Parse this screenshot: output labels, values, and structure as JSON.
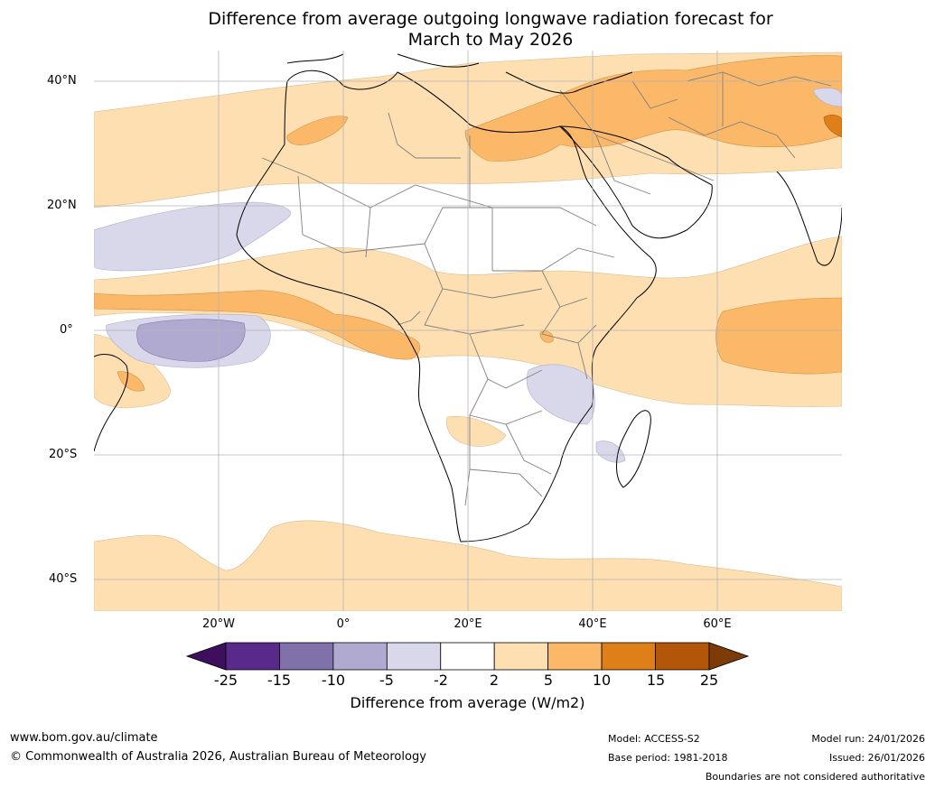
{
  "title_line1": "Difference from average outgoing longwave radiation forecast for",
  "title_line2": "March to May 2026",
  "lat_labels": [
    "40°N",
    "20°N",
    "0°",
    "20°S",
    "40°S"
  ],
  "lon_labels": [
    "20°W",
    "0°",
    "20°E",
    "40°E",
    "60°E"
  ],
  "colorbar": {
    "ticks": [
      "-25",
      "-15",
      "-10",
      "-5",
      "-2",
      "2",
      "5",
      "10",
      "15",
      "25"
    ],
    "colors": [
      "#3f0f5f",
      "#5a2a8a",
      "#8071aa",
      "#b0aad0",
      "#d8d8ea",
      "#ffffff",
      "#fddfb2",
      "#fbb868",
      "#df7f18",
      "#b3560a",
      "#7d3b08"
    ],
    "label": "Difference from average (W/m2)"
  },
  "footer": {
    "url": "www.bom.gov.au/climate",
    "copyright": "© Commonwealth of Australia 2026, Australian Bureau of Meteorology",
    "model": "Model: ACCESS-S2",
    "base_period": "Base period: 1981-2018",
    "model_run": "Model run: 24/01/2026",
    "issued": "Issued: 26/01/2026",
    "disclaimer": "Boundaries are not considered authoritative"
  }
}
